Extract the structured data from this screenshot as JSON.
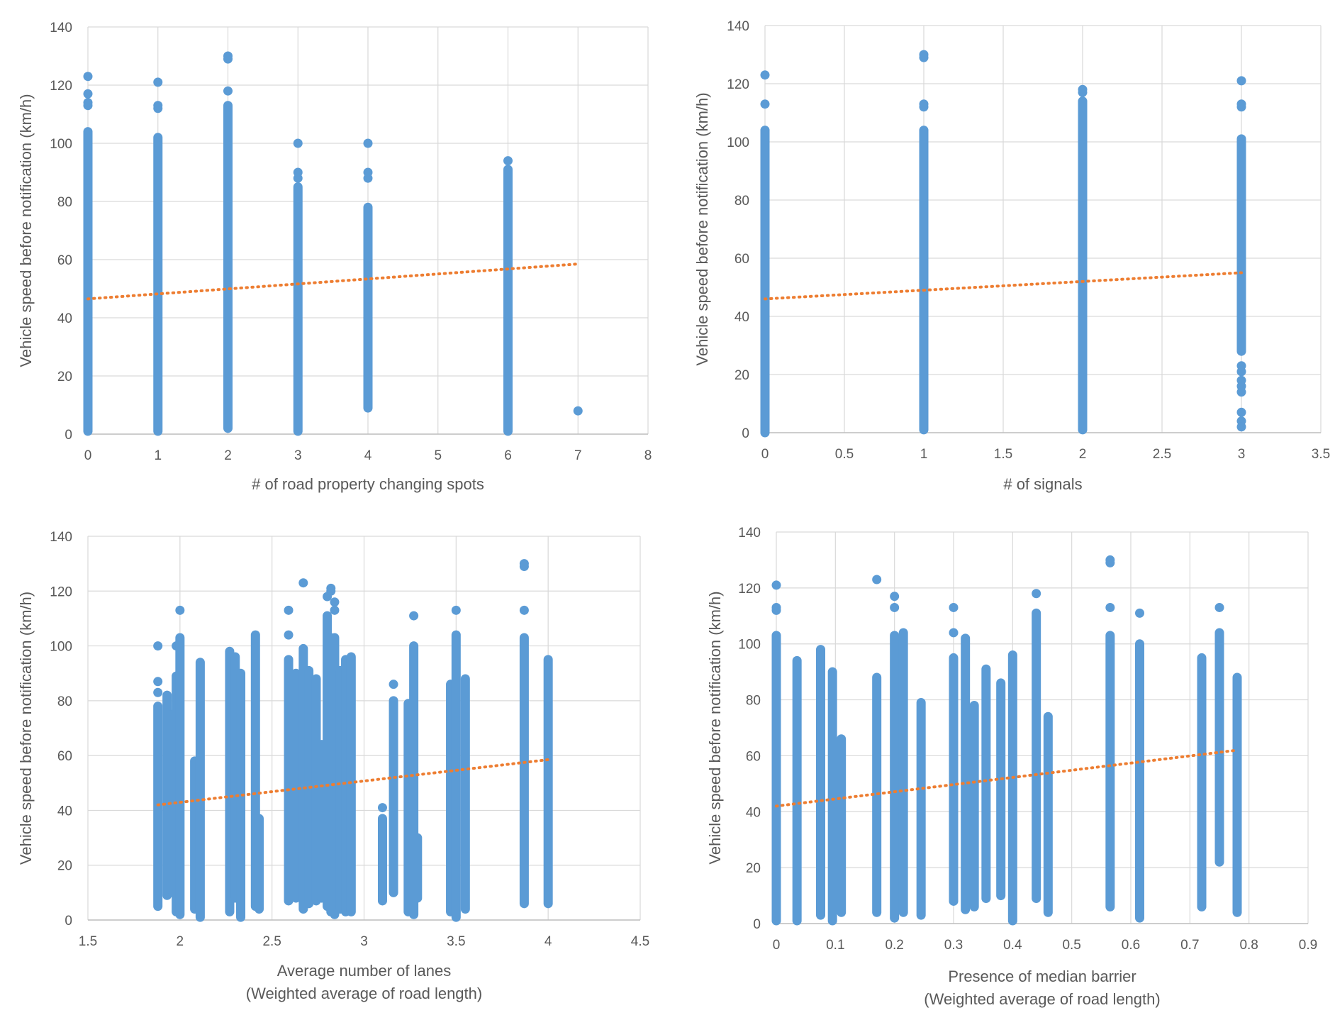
{
  "colors": {
    "points": "#5b9bd5",
    "trend": "#ed7d31",
    "grid": "#d9d9d9",
    "text": "#595959"
  },
  "chart_data": [
    {
      "type": "scatter",
      "title": "",
      "xlabel": "# of road property changing spots",
      "xlabel2": "",
      "ylabel": "Vehicle speed before notification (km/h)",
      "xlim": [
        0,
        8
      ],
      "ylim": [
        0,
        140
      ],
      "xticks": [
        0,
        1,
        2,
        3,
        4,
        5,
        6,
        7,
        8
      ],
      "xtick_labels": [
        "0",
        "1",
        "2",
        "3",
        "4",
        "5",
        "6",
        "7",
        "8"
      ],
      "yticks": [
        0,
        20,
        40,
        60,
        80,
        100,
        120,
        140
      ],
      "ytick_labels": [
        "0",
        "20",
        "40",
        "60",
        "80",
        "100",
        "120",
        "140"
      ],
      "grid": true,
      "columns": [
        {
          "x": 0,
          "y_min": 1,
          "y_max": 104,
          "outliers": [
            113,
            114,
            117,
            123
          ]
        },
        {
          "x": 1,
          "y_min": 1,
          "y_max": 102,
          "outliers": [
            112,
            113,
            121
          ]
        },
        {
          "x": 2,
          "y_min": 2,
          "y_max": 113,
          "outliers": [
            118,
            129,
            130
          ]
        },
        {
          "x": 3,
          "y_min": 1,
          "y_max": 85,
          "outliers": [
            88,
            90,
            100
          ]
        },
        {
          "x": 4,
          "y_min": 9,
          "y_max": 78,
          "outliers": [
            88,
            90,
            100
          ]
        },
        {
          "x": 6,
          "y_min": 1,
          "y_max": 91,
          "outliers": [
            94
          ]
        }
      ],
      "points": [
        {
          "x": 7,
          "y": 8
        }
      ],
      "trendline": {
        "type": "linear",
        "x": [
          0,
          7
        ],
        "y": [
          46.5,
          58.5
        ]
      }
    },
    {
      "type": "scatter",
      "title": "",
      "xlabel": "# of signals",
      "xlabel2": "",
      "ylabel": "Vehicle speed before notification (km/h)",
      "xlim": [
        0,
        3.5
      ],
      "ylim": [
        0,
        140
      ],
      "xticks": [
        0,
        0.5,
        1,
        1.5,
        2,
        2.5,
        3,
        3.5
      ],
      "xtick_labels": [
        "0",
        "0.5",
        "1",
        "1.5",
        "2",
        "2.5",
        "3",
        "3.5"
      ],
      "yticks": [
        0,
        20,
        40,
        60,
        80,
        100,
        120,
        140
      ],
      "ytick_labels": [
        "0",
        "20",
        "40",
        "60",
        "80",
        "100",
        "120",
        "140"
      ],
      "grid": true,
      "columns": [
        {
          "x": 0,
          "y_min": 0,
          "y_max": 104,
          "outliers": [
            113,
            123
          ]
        },
        {
          "x": 1,
          "y_min": 1,
          "y_max": 104,
          "outliers": [
            112,
            113,
            129,
            130
          ]
        },
        {
          "x": 2,
          "y_min": 1,
          "y_max": 114,
          "outliers": [
            117,
            118
          ]
        },
        {
          "x": 3,
          "y_min": 28,
          "y_max": 101,
          "outliers": [
            112,
            113,
            121,
            23,
            21,
            18,
            16,
            14,
            7,
            4,
            2
          ]
        }
      ],
      "points": [],
      "trendline": {
        "type": "linear",
        "x": [
          0,
          3
        ],
        "y": [
          46,
          55
        ]
      }
    },
    {
      "type": "scatter",
      "title": "",
      "xlabel": "Average number of lanes",
      "xlabel2": "(Weighted average of road length)",
      "ylabel": "Vehicle speed before notification (km/h)",
      "xlim": [
        1.5,
        4.5
      ],
      "ylim": [
        0,
        140
      ],
      "xticks": [
        1.5,
        2,
        2.5,
        3,
        3.5,
        4,
        4.5
      ],
      "xtick_labels": [
        "1.5",
        "2",
        "2.5",
        "3",
        "3.5",
        "4",
        "4.5"
      ],
      "yticks": [
        0,
        20,
        40,
        60,
        80,
        100,
        120,
        140
      ],
      "ytick_labels": [
        "0",
        "20",
        "40",
        "60",
        "80",
        "100",
        "120",
        "140"
      ],
      "grid": true,
      "columns": [
        {
          "x": 1.88,
          "y_min": 5,
          "y_max": 78,
          "outliers": [
            83,
            87,
            100
          ]
        },
        {
          "x": 1.93,
          "y_min": 9,
          "y_max": 82,
          "outliers": []
        },
        {
          "x": 1.96,
          "y_min": 10,
          "y_max": 75,
          "outliers": []
        },
        {
          "x": 1.98,
          "y_min": 3,
          "y_max": 89,
          "outliers": [
            100
          ]
        },
        {
          "x": 2.0,
          "y_min": 2,
          "y_max": 103,
          "outliers": [
            113
          ]
        },
        {
          "x": 2.08,
          "y_min": 4,
          "y_max": 58,
          "outliers": []
        },
        {
          "x": 2.11,
          "y_min": 1,
          "y_max": 94,
          "outliers": []
        },
        {
          "x": 2.27,
          "y_min": 3,
          "y_max": 98,
          "outliers": []
        },
        {
          "x": 2.3,
          "y_min": 8,
          "y_max": 96,
          "outliers": []
        },
        {
          "x": 2.33,
          "y_min": 1,
          "y_max": 90,
          "outliers": []
        },
        {
          "x": 2.41,
          "y_min": 5,
          "y_max": 104,
          "outliers": []
        },
        {
          "x": 2.43,
          "y_min": 4,
          "y_max": 37,
          "outliers": []
        },
        {
          "x": 2.59,
          "y_min": 7,
          "y_max": 95,
          "outliers": [
            113,
            104
          ]
        },
        {
          "x": 2.63,
          "y_min": 8,
          "y_max": 90,
          "outliers": []
        },
        {
          "x": 2.67,
          "y_min": 4,
          "y_max": 99,
          "outliers": [
            123
          ]
        },
        {
          "x": 2.7,
          "y_min": 6,
          "y_max": 91,
          "outliers": []
        },
        {
          "x": 2.74,
          "y_min": 7,
          "y_max": 88,
          "outliers": []
        },
        {
          "x": 2.77,
          "y_min": 8,
          "y_max": 64,
          "outliers": []
        },
        {
          "x": 2.8,
          "y_min": 5,
          "y_max": 111,
          "outliers": [
            118
          ]
        },
        {
          "x": 2.82,
          "y_min": 3,
          "y_max": 103,
          "outliers": [
            120,
            121
          ]
        },
        {
          "x": 2.84,
          "y_min": 2,
          "y_max": 103,
          "outliers": [
            116,
            113
          ]
        },
        {
          "x": 2.87,
          "y_min": 4,
          "y_max": 91,
          "outliers": []
        },
        {
          "x": 2.9,
          "y_min": 3,
          "y_max": 95,
          "outliers": []
        },
        {
          "x": 2.93,
          "y_min": 3,
          "y_max": 96,
          "outliers": []
        },
        {
          "x": 3.1,
          "y_min": 7,
          "y_max": 37,
          "outliers": [
            41
          ]
        },
        {
          "x": 3.16,
          "y_min": 10,
          "y_max": 80,
          "outliers": [
            86
          ]
        },
        {
          "x": 3.24,
          "y_min": 3,
          "y_max": 79,
          "outliers": []
        },
        {
          "x": 3.27,
          "y_min": 2,
          "y_max": 100,
          "outliers": [
            111
          ]
        },
        {
          "x": 3.29,
          "y_min": 8,
          "y_max": 30,
          "outliers": []
        },
        {
          "x": 3.47,
          "y_min": 3,
          "y_max": 86,
          "outliers": []
        },
        {
          "x": 3.5,
          "y_min": 1,
          "y_max": 104,
          "outliers": [
            113
          ]
        },
        {
          "x": 3.55,
          "y_min": 4,
          "y_max": 88,
          "outliers": []
        },
        {
          "x": 3.87,
          "y_min": 6,
          "y_max": 103,
          "outliers": [
            113,
            129,
            130
          ]
        },
        {
          "x": 4.0,
          "y_min": 6,
          "y_max": 95,
          "outliers": []
        }
      ],
      "points": [],
      "trendline": {
        "type": "linear",
        "x": [
          1.88,
          4.0
        ],
        "y": [
          42,
          58.5
        ]
      }
    },
    {
      "type": "scatter",
      "title": "",
      "xlabel": "Presence of median barrier",
      "xlabel2": "(Weighted average of road length)",
      "ylabel": "Vehicle speed before notification (km/h)",
      "xlim": [
        0,
        0.9
      ],
      "ylim": [
        0,
        140
      ],
      "xticks": [
        0,
        0.1,
        0.2,
        0.3,
        0.4,
        0.5,
        0.6,
        0.7,
        0.8,
        0.9
      ],
      "xtick_labels": [
        "0",
        "0.1",
        "0.2",
        "0.3",
        "0.4",
        "0.5",
        "0.6",
        "0.7",
        "0.8",
        "0.9"
      ],
      "yticks": [
        0,
        20,
        40,
        60,
        80,
        100,
        120,
        140
      ],
      "ytick_labels": [
        "0",
        "20",
        "40",
        "60",
        "80",
        "100",
        "120",
        "140"
      ],
      "grid": true,
      "columns": [
        {
          "x": 0.0,
          "y_min": 1,
          "y_max": 103,
          "outliers": [
            112,
            113,
            121
          ]
        },
        {
          "x": 0.035,
          "y_min": 1,
          "y_max": 94,
          "outliers": []
        },
        {
          "x": 0.075,
          "y_min": 3,
          "y_max": 98,
          "outliers": []
        },
        {
          "x": 0.095,
          "y_min": 1,
          "y_max": 90,
          "outliers": []
        },
        {
          "x": 0.11,
          "y_min": 4,
          "y_max": 66,
          "outliers": []
        },
        {
          "x": 0.17,
          "y_min": 4,
          "y_max": 88,
          "outliers": [
            123
          ]
        },
        {
          "x": 0.2,
          "y_min": 2,
          "y_max": 103,
          "outliers": [
            113,
            117
          ]
        },
        {
          "x": 0.215,
          "y_min": 4,
          "y_max": 104,
          "outliers": []
        },
        {
          "x": 0.245,
          "y_min": 3,
          "y_max": 79,
          "outliers": []
        },
        {
          "x": 0.3,
          "y_min": 8,
          "y_max": 95,
          "outliers": [
            104,
            113
          ]
        },
        {
          "x": 0.32,
          "y_min": 5,
          "y_max": 102,
          "outliers": []
        },
        {
          "x": 0.335,
          "y_min": 6,
          "y_max": 78,
          "outliers": []
        },
        {
          "x": 0.355,
          "y_min": 9,
          "y_max": 91,
          "outliers": []
        },
        {
          "x": 0.38,
          "y_min": 10,
          "y_max": 86,
          "outliers": []
        },
        {
          "x": 0.4,
          "y_min": 1,
          "y_max": 96,
          "outliers": []
        },
        {
          "x": 0.44,
          "y_min": 9,
          "y_max": 111,
          "outliers": [
            118
          ]
        },
        {
          "x": 0.46,
          "y_min": 4,
          "y_max": 74,
          "outliers": []
        },
        {
          "x": 0.565,
          "y_min": 6,
          "y_max": 103,
          "outliers": [
            113,
            129,
            130
          ]
        },
        {
          "x": 0.615,
          "y_min": 2,
          "y_max": 100,
          "outliers": [
            111
          ]
        },
        {
          "x": 0.72,
          "y_min": 6,
          "y_max": 95,
          "outliers": []
        },
        {
          "x": 0.75,
          "y_min": 22,
          "y_max": 104,
          "outliers": [
            113
          ]
        },
        {
          "x": 0.78,
          "y_min": 4,
          "y_max": 88,
          "outliers": []
        }
      ],
      "points": [],
      "trendline": {
        "type": "linear",
        "x": [
          0.0,
          0.78
        ],
        "y": [
          42,
          62
        ]
      }
    }
  ]
}
